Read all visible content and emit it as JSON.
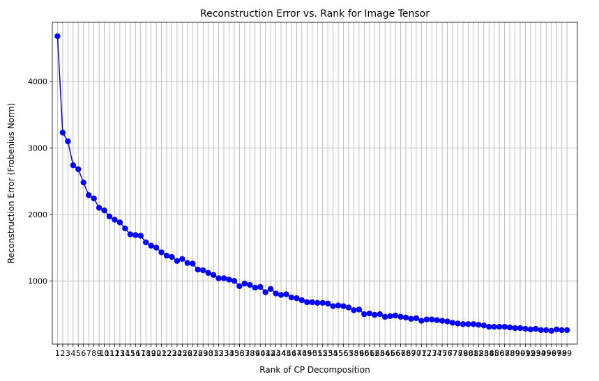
{
  "chart_data": {
    "type": "line",
    "title": "Reconstruction Error vs. Rank for Image Tensor",
    "xlabel": "Rank of CP Decomposition",
    "ylabel": "Reconstruction Error (Frobenius Norm)",
    "grid": true,
    "line_color": "#0000ff",
    "marker": "circle",
    "x": [
      1,
      2,
      3,
      4,
      5,
      6,
      7,
      8,
      9,
      10,
      11,
      12,
      13,
      14,
      15,
      16,
      17,
      18,
      19,
      20,
      21,
      22,
      23,
      24,
      25,
      26,
      27,
      28,
      29,
      30,
      31,
      32,
      33,
      34,
      35,
      36,
      37,
      38,
      39,
      40,
      41,
      42,
      43,
      44,
      45,
      46,
      47,
      48,
      49,
      50,
      51,
      52,
      53,
      54,
      55,
      56,
      57,
      58,
      59,
      60,
      61,
      62,
      63,
      64,
      65,
      66,
      67,
      68,
      69,
      70,
      71,
      72,
      73,
      74,
      75,
      76,
      77,
      78,
      79,
      80,
      81,
      82,
      83,
      84,
      85,
      86,
      87,
      88,
      89,
      90,
      91,
      92,
      93,
      94,
      95,
      96,
      97,
      98,
      99
    ],
    "y": [
      4680,
      3230,
      3100,
      2740,
      2680,
      2480,
      2290,
      2240,
      2100,
      2060,
      1970,
      1920,
      1880,
      1790,
      1700,
      1690,
      1680,
      1580,
      1530,
      1500,
      1430,
      1380,
      1360,
      1300,
      1330,
      1270,
      1260,
      1170,
      1160,
      1120,
      1090,
      1040,
      1040,
      1020,
      1000,
      920,
      960,
      940,
      900,
      910,
      830,
      880,
      810,
      790,
      800,
      750,
      740,
      710,
      680,
      680,
      670,
      670,
      660,
      620,
      630,
      620,
      600,
      560,
      570,
      500,
      510,
      490,
      500,
      460,
      470,
      480,
      460,
      450,
      430,
      440,
      400,
      420,
      420,
      410,
      400,
      390,
      370,
      360,
      350,
      350,
      350,
      340,
      330,
      310,
      310,
      310,
      310,
      300,
      290,
      290,
      280,
      270,
      280,
      260,
      260,
      250,
      270,
      260,
      260
    ],
    "xlim": [
      0,
      101
    ],
    "ylim": [
      50,
      4890
    ],
    "y_ticks": [
      1000,
      2000,
      3000,
      4000
    ]
  }
}
